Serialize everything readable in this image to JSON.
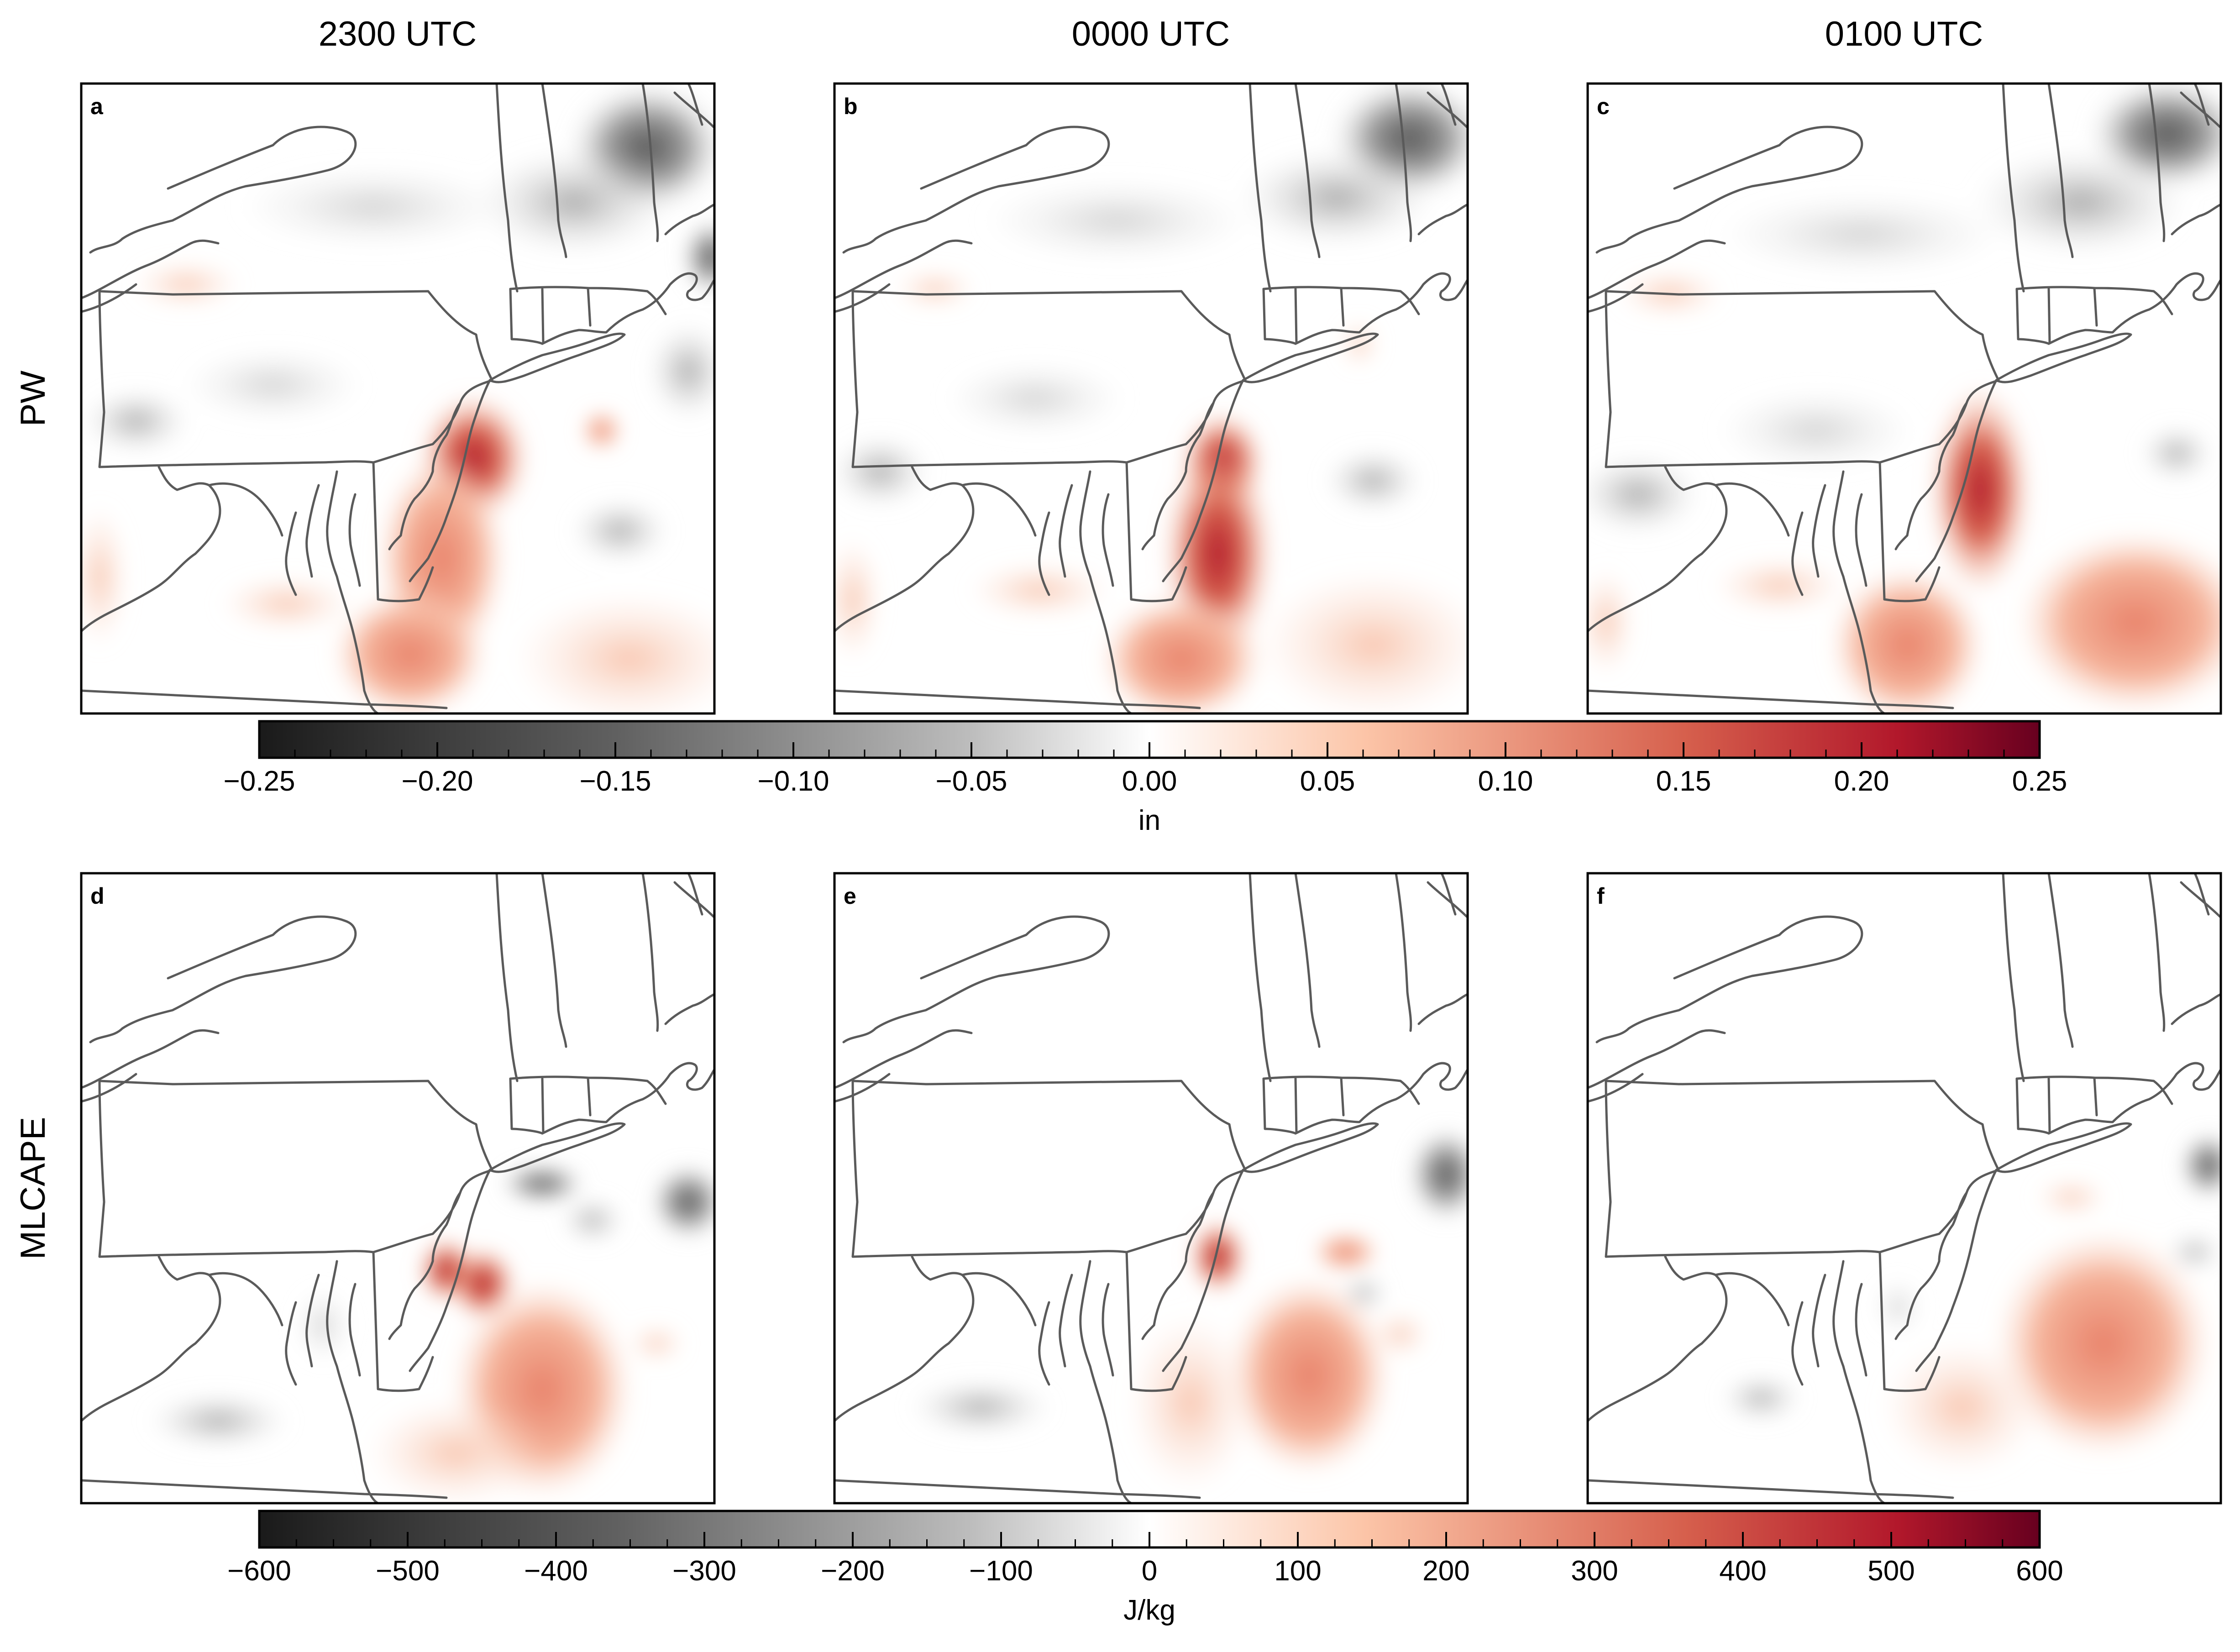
{
  "columns": [
    "2300 UTC",
    "0000 UTC",
    "0100 UTC"
  ],
  "rows": [
    "PW",
    "MLCAPE"
  ],
  "panel_letters": [
    "a",
    "b",
    "c",
    "d",
    "e",
    "f"
  ],
  "colors": {
    "negative_end": "#1a1a1a",
    "neutral": "#ffffff",
    "positive_end": "#67001f",
    "positive_mid": "#d6604d",
    "boundary": "#5a5a5a"
  },
  "colorbars": [
    {
      "label": "in",
      "min": -0.25,
      "max": 0.25,
      "ticks": [
        "−0.25",
        "−0.20",
        "−0.15",
        "−0.10",
        "−0.05",
        "0.00",
        "0.05",
        "0.10",
        "0.15",
        "0.20",
        "0.25"
      ],
      "tick_values": [
        -0.25,
        -0.2,
        -0.15,
        -0.1,
        -0.05,
        0.0,
        0.05,
        0.1,
        0.15,
        0.2,
        0.25
      ]
    },
    {
      "label": "J/kg",
      "min": -600,
      "max": 600,
      "ticks": [
        "−600",
        "−500",
        "−400",
        "−300",
        "−200",
        "−100",
        "0",
        "100",
        "200",
        "300",
        "400",
        "500",
        "600"
      ],
      "tick_values": [
        -600,
        -500,
        -400,
        -300,
        -200,
        -100,
        0,
        100,
        200,
        300,
        400,
        500,
        600
      ]
    }
  ]
}
